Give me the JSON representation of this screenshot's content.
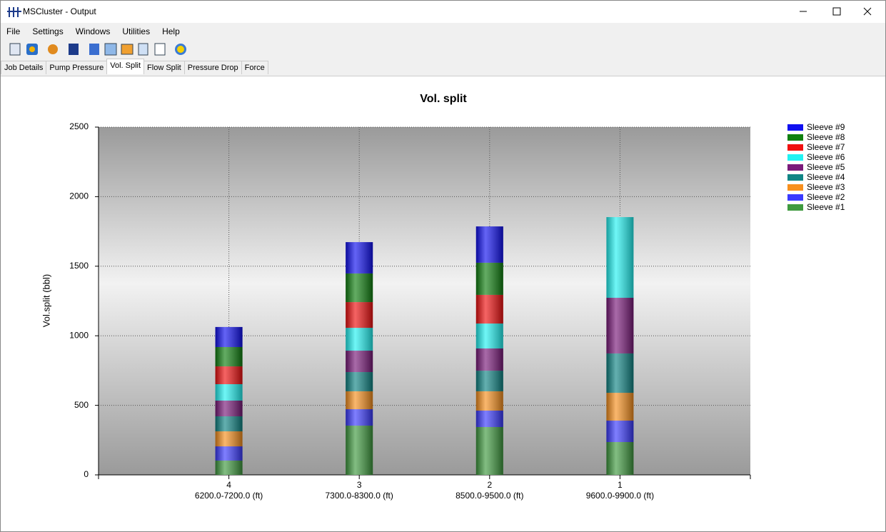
{
  "window": {
    "title": "MSCluster - Output"
  },
  "menu": [
    "File",
    "Settings",
    "Windows",
    "Utilities",
    "Help"
  ],
  "tabs": [
    "Job Details",
    "Pump Pressure",
    "Vol. Split",
    "Flow Split",
    "Pressure Drop",
    "Force"
  ],
  "active_tab": 2,
  "chart_data": {
    "type": "stacked_bar",
    "title": "Vol. split",
    "y_label": "Vol.split (bbl)",
    "categories": [
      "4",
      "3",
      "2",
      "1"
    ],
    "category_ranges": [
      "6200.0-7200.0 (ft)",
      "7300.0-8300.0 (ft)",
      "8500.0-9500.0 (ft)",
      "9600.0-9900.0 (ft)"
    ],
    "series": [
      {
        "name": "Sleeve #1",
        "color": "#3f9a3f",
        "values": [
          103,
          354,
          344,
          236
        ]
      },
      {
        "name": "Sleeve #2",
        "color": "#3a3aff",
        "values": [
          102,
          118,
          118,
          154
        ]
      },
      {
        "name": "Sleeve #3",
        "color": "#f7901e",
        "values": [
          108,
          129,
          139,
          200
        ]
      },
      {
        "name": "Sleeve #4",
        "color": "#108585",
        "values": [
          108,
          138,
          148,
          283
        ]
      },
      {
        "name": "Sleeve #5",
        "color": "#7a1a7a",
        "values": [
          113,
          154,
          160,
          400
        ]
      },
      {
        "name": "Sleeve #6",
        "color": "#22f2f2",
        "values": [
          118,
          164,
          179,
          580
        ]
      },
      {
        "name": "Sleeve #7",
        "color": "#f01010",
        "values": [
          128,
          185,
          206,
          null
        ]
      },
      {
        "name": "Sleeve #8",
        "color": "#108010",
        "values": [
          139,
          206,
          231,
          null
        ]
      },
      {
        "name": "Sleeve #9",
        "color": "#1010f0",
        "values": [
          144,
          225,
          261,
          null
        ]
      }
    ],
    "ylim": [
      0,
      2500
    ],
    "yticks": [
      0,
      500,
      1000,
      1500,
      2000,
      2500
    ],
    "grid": true,
    "legend": "right"
  }
}
